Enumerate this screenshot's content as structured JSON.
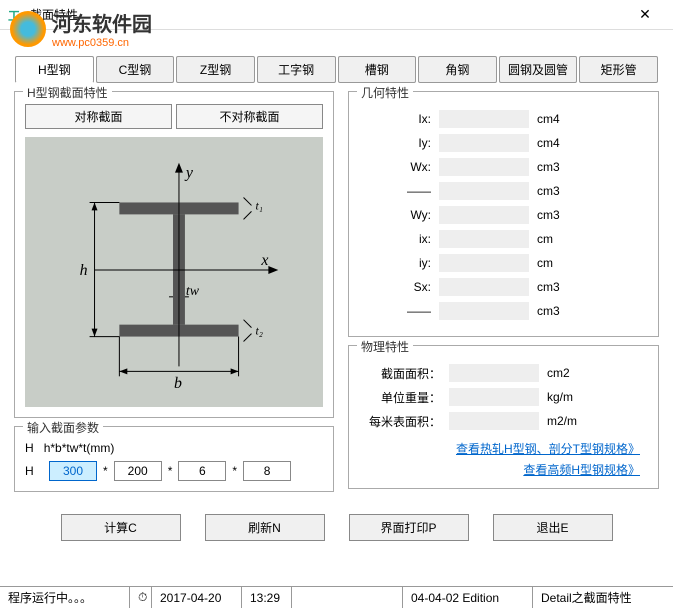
{
  "window": {
    "title": "截面特性"
  },
  "watermark": {
    "name": "河东软件园",
    "url": "www.pc0359.cn"
  },
  "tabs": [
    "H型钢",
    "C型钢",
    "Z型钢",
    "工字钢",
    "槽钢",
    "角钢",
    "圆钢及圆管",
    "矩形管"
  ],
  "left_group": {
    "legend": "H型钢截面特性",
    "sym_btn": "对称截面",
    "asym_btn": "不对称截面"
  },
  "diagram": {
    "y": "y",
    "x": "x",
    "h": "h",
    "b": "b",
    "tw": "tw",
    "t1": "t₁",
    "t2": "t₂"
  },
  "params": {
    "legend": "输入截面参数",
    "spec_label": "H",
    "spec_format": "h*b*tw*t(mm)",
    "h_label": "H",
    "h": "300",
    "b": "200",
    "tw": "6",
    "t": "8"
  },
  "geo": {
    "legend": "几何特性",
    "rows": [
      {
        "label": "Ix:",
        "unit": "cm4"
      },
      {
        "label": "Iy:",
        "unit": "cm4"
      },
      {
        "label": "Wx:",
        "unit": "cm3"
      },
      {
        "label": "——",
        "unit": "cm3",
        "dash": true
      },
      {
        "label": "Wy:",
        "unit": "cm3"
      },
      {
        "label": "ix:",
        "unit": "cm"
      },
      {
        "label": "iy:",
        "unit": "cm"
      },
      {
        "label": "Sx:",
        "unit": "cm3"
      },
      {
        "label": "——",
        "unit": "cm3",
        "dash": true
      }
    ]
  },
  "phys": {
    "legend": "物理特性",
    "rows": [
      {
        "label": "截面面积：",
        "unit": "cm2"
      },
      {
        "label": "单位重量：",
        "unit": "kg/m"
      },
      {
        "label": "每米表面积：",
        "unit": "m2/m"
      }
    ],
    "link1": "查看热轧H型钢、剖分T型钢规格》",
    "link2": "查看高频H型钢规格》"
  },
  "bottom": {
    "calc": "计算C",
    "refresh": "刷新N",
    "print": "界面打印P",
    "exit": "退出E"
  },
  "status": {
    "running": "程序运行中。。。",
    "date": "2017-04-20",
    "time": "13:29",
    "edition": "04-04-02 Edition",
    "detail": "Detail之截面特性"
  }
}
